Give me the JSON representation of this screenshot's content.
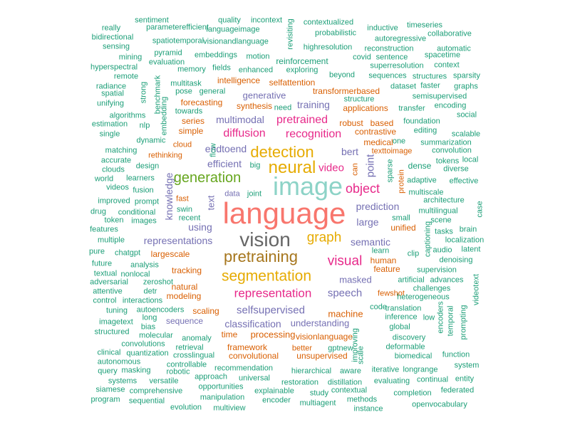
{
  "colors": {
    "salmon": "#f8766d",
    "orange": "#e68613",
    "olive": "#cd9600",
    "gold": "#c49a00",
    "yellowgreen": "#aba300",
    "darkgold": "#8e7b00",
    "green": "#7cae00",
    "leaf": "#0cb702",
    "teal": "#00a48f",
    "tealgreen": "#00a67e",
    "aqua": "#00bfc4",
    "lightcyan": "#8dd3c7",
    "blue": "#00b4f0",
    "sky": "#00a9ff",
    "slate": "#6573a8",
    "purple": "#7b6fb0",
    "violet": "#c77cff",
    "magenta": "#e7298a",
    "pink": "#ff61cc",
    "gray": "#666666",
    "green2": "#1b9e77",
    "orange2": "#d95f02",
    "purple2": "#7570b3",
    "lime2": "#66a61e",
    "yellow2": "#e6ab02",
    "brown2": "#a6761d"
  },
  "words": [
    {
      "t": "language",
      "c": "salmon"
    },
    {
      "t": "image",
      "c": "lightcyan"
    },
    {
      "t": "vision",
      "c": "gray"
    },
    {
      "t": "pretraining",
      "c": "brown2"
    },
    {
      "t": "segmentation",
      "c": "yellow2"
    },
    {
      "t": "neural",
      "c": "yellow2"
    },
    {
      "t": "detection",
      "c": "yellow2"
    },
    {
      "t": "generation",
      "c": "lime2"
    },
    {
      "t": "graph",
      "c": "yellow2"
    },
    {
      "t": "representation",
      "c": "magenta"
    },
    {
      "t": "visual",
      "c": "magenta"
    },
    {
      "t": "object",
      "c": "magenta"
    },
    {
      "t": "diffusion",
      "c": "magenta"
    },
    {
      "t": "recognition",
      "c": "magenta"
    },
    {
      "t": "pretrained",
      "c": "magenta"
    },
    {
      "t": "selfsupervised",
      "c": "purple2"
    },
    {
      "t": "speech",
      "c": "purple2"
    },
    {
      "t": "prediction",
      "c": "purple2"
    },
    {
      "t": "semantic",
      "c": "purple2"
    },
    {
      "t": "masked",
      "c": "purple2"
    },
    {
      "t": "representations",
      "c": "purple2"
    },
    {
      "t": "endtoend",
      "c": "purple2"
    },
    {
      "t": "efficient",
      "c": "purple2"
    },
    {
      "t": "video",
      "c": "magenta"
    },
    {
      "t": "bert",
      "c": "purple2"
    },
    {
      "t": "point",
      "c": "purple2"
    },
    {
      "t": "large",
      "c": "purple2"
    },
    {
      "t": "knowledge",
      "c": "purple2"
    },
    {
      "t": "text",
      "c": "purple2"
    },
    {
      "t": "using",
      "c": "purple2"
    },
    {
      "t": "training",
      "c": "purple2"
    },
    {
      "t": "multimodal",
      "c": "purple2"
    },
    {
      "t": "generative",
      "c": "purple2"
    },
    {
      "t": "classification",
      "c": "purple2"
    },
    {
      "t": "understanding",
      "c": "purple2"
    },
    {
      "t": "machine",
      "c": "orange2"
    },
    {
      "t": "processing",
      "c": "orange2"
    },
    {
      "t": "human",
      "c": "orange2"
    },
    {
      "t": "medical",
      "c": "orange2"
    },
    {
      "t": "contrastive",
      "c": "orange2"
    },
    {
      "t": "unified",
      "c": "orange2"
    },
    {
      "t": "tracking",
      "c": "orange2"
    },
    {
      "t": "largescale",
      "c": "orange2"
    },
    {
      "t": "natural",
      "c": "orange2"
    },
    {
      "t": "modeling",
      "c": "orange2"
    },
    {
      "t": "scaling",
      "c": "orange2"
    },
    {
      "t": "synthesis",
      "c": "orange2"
    },
    {
      "t": "transformerbased",
      "c": "orange2"
    },
    {
      "t": "applications",
      "c": "orange2"
    },
    {
      "t": "robust",
      "c": "orange2"
    },
    {
      "t": "based",
      "c": "orange2"
    },
    {
      "t": "feature",
      "c": "orange2"
    },
    {
      "t": "visionlanguage",
      "c": "orange2"
    },
    {
      "t": "framework",
      "c": "orange2"
    },
    {
      "t": "convolutional",
      "c": "orange2"
    },
    {
      "t": "unsupervised",
      "c": "orange2"
    },
    {
      "t": "better",
      "c": "orange2"
    },
    {
      "t": "time",
      "c": "orange2"
    },
    {
      "t": "forecasting",
      "c": "orange2"
    },
    {
      "t": "intelligence",
      "c": "orange2"
    },
    {
      "t": "selfattention",
      "c": "orange2"
    },
    {
      "t": "simple",
      "c": "orange2"
    },
    {
      "t": "series",
      "c": "orange2"
    },
    {
      "t": "cloud",
      "c": "orange2"
    },
    {
      "t": "rethinking",
      "c": "orange2"
    },
    {
      "t": "fast",
      "c": "orange2"
    },
    {
      "t": "texttoimage",
      "c": "orange2"
    },
    {
      "t": "fewshot",
      "c": "orange2"
    },
    {
      "t": "protein",
      "c": "orange2"
    },
    {
      "t": "can",
      "c": "orange2"
    },
    {
      "t": "sequence",
      "c": "purple2"
    },
    {
      "t": "code",
      "c": "green2"
    },
    {
      "t": "dense",
      "c": "green2"
    },
    {
      "t": "adaptive",
      "c": "green2"
    },
    {
      "t": "multiscale",
      "c": "green2"
    },
    {
      "t": "multilingual",
      "c": "green2"
    },
    {
      "t": "data",
      "c": "purple2"
    },
    {
      "t": "reinforcement",
      "c": "green2"
    },
    {
      "t": "enhanced",
      "c": "green2"
    },
    {
      "t": "exploring",
      "c": "green2"
    },
    {
      "t": "beyond",
      "c": "green2"
    },
    {
      "t": "general",
      "c": "green2"
    },
    {
      "t": "towards",
      "c": "green2"
    },
    {
      "t": "dynamic",
      "c": "green2"
    },
    {
      "t": "learners",
      "c": "green2"
    },
    {
      "t": "fusion",
      "c": "green2"
    },
    {
      "t": "conditional",
      "c": "green2"
    },
    {
      "t": "images",
      "c": "green2"
    },
    {
      "t": "analysis",
      "c": "green2"
    },
    {
      "t": "zeroshot",
      "c": "green2"
    },
    {
      "t": "autoencoders",
      "c": "green2"
    },
    {
      "t": "molecular",
      "c": "green2"
    },
    {
      "t": "crosslingual",
      "c": "green2"
    },
    {
      "t": "recommendation",
      "c": "green2"
    },
    {
      "t": "hierarchical",
      "c": "green2"
    },
    {
      "t": "aware",
      "c": "green2"
    },
    {
      "t": "restoration",
      "c": "green2"
    },
    {
      "t": "distillation",
      "c": "green2"
    },
    {
      "t": "contextual",
      "c": "green2"
    },
    {
      "t": "methods",
      "c": "green2"
    },
    {
      "t": "instance",
      "c": "green2"
    },
    {
      "t": "explainable",
      "c": "green2"
    },
    {
      "t": "encoder",
      "c": "green2"
    },
    {
      "t": "multiagent",
      "c": "green2"
    },
    {
      "t": "study",
      "c": "green2"
    },
    {
      "t": "universal",
      "c": "green2"
    },
    {
      "t": "manipulation",
      "c": "green2"
    },
    {
      "t": "multiview",
      "c": "green2"
    },
    {
      "t": "opportunities",
      "c": "green2"
    },
    {
      "t": "approach",
      "c": "green2"
    },
    {
      "t": "evolution",
      "c": "green2"
    },
    {
      "t": "sequential",
      "c": "green2"
    },
    {
      "t": "comprehensive",
      "c": "green2"
    },
    {
      "t": "program",
      "c": "green2"
    },
    {
      "t": "siamese",
      "c": "green2"
    },
    {
      "t": "systems",
      "c": "green2"
    },
    {
      "t": "versatile",
      "c": "green2"
    },
    {
      "t": "query",
      "c": "green2"
    },
    {
      "t": "masking",
      "c": "green2"
    },
    {
      "t": "robotic",
      "c": "green2"
    },
    {
      "t": "autonomous",
      "c": "green2"
    },
    {
      "t": "controllable",
      "c": "green2"
    },
    {
      "t": "clinical",
      "c": "green2"
    },
    {
      "t": "quantization",
      "c": "green2"
    },
    {
      "t": "convolutions",
      "c": "green2"
    },
    {
      "t": "retrieval",
      "c": "green2"
    },
    {
      "t": "structured",
      "c": "green2"
    },
    {
      "t": "anomaly",
      "c": "green2"
    },
    {
      "t": "imagetext",
      "c": "green2"
    },
    {
      "t": "bias",
      "c": "green2"
    },
    {
      "t": "long",
      "c": "green2"
    },
    {
      "t": "tuning",
      "c": "green2"
    },
    {
      "t": "interactions",
      "c": "green2"
    },
    {
      "t": "control",
      "c": "green2"
    },
    {
      "t": "attentive",
      "c": "green2"
    },
    {
      "t": "detr",
      "c": "green2"
    },
    {
      "t": "adversarial",
      "c": "green2"
    },
    {
      "t": "textual",
      "c": "green2"
    },
    {
      "t": "nonlocal",
      "c": "green2"
    },
    {
      "t": "future",
      "c": "green2"
    },
    {
      "t": "pure",
      "c": "green2"
    },
    {
      "t": "chatgpt",
      "c": "green2"
    },
    {
      "t": "multiple",
      "c": "green2"
    },
    {
      "t": "features",
      "c": "green2"
    },
    {
      "t": "token",
      "c": "green2"
    },
    {
      "t": "drug",
      "c": "green2"
    },
    {
      "t": "improved",
      "c": "green2"
    },
    {
      "t": "prompt",
      "c": "green2"
    },
    {
      "t": "swin",
      "c": "green2"
    },
    {
      "t": "recent",
      "c": "green2"
    },
    {
      "t": "videos",
      "c": "green2"
    },
    {
      "t": "world",
      "c": "green2"
    },
    {
      "t": "clouds",
      "c": "green2"
    },
    {
      "t": "design",
      "c": "green2"
    },
    {
      "t": "accurate",
      "c": "green2"
    },
    {
      "t": "matching",
      "c": "green2"
    },
    {
      "t": "single",
      "c": "green2"
    },
    {
      "t": "estimation",
      "c": "green2"
    },
    {
      "t": "nlp",
      "c": "green2"
    },
    {
      "t": "algorithms",
      "c": "green2"
    },
    {
      "t": "unifying",
      "c": "green2"
    },
    {
      "t": "spatial",
      "c": "green2"
    },
    {
      "t": "radiance",
      "c": "green2"
    },
    {
      "t": "remote",
      "c": "green2"
    },
    {
      "t": "hyperspectral",
      "c": "green2"
    },
    {
      "t": "mining",
      "c": "green2"
    },
    {
      "t": "sensing",
      "c": "green2"
    },
    {
      "t": "bidirectional",
      "c": "green2"
    },
    {
      "t": "really",
      "c": "green2"
    },
    {
      "t": "sentiment",
      "c": "green2"
    },
    {
      "t": "parameterefficient",
      "c": "green2"
    },
    {
      "t": "spatiotemporal",
      "c": "green2"
    },
    {
      "t": "pyramid",
      "c": "green2"
    },
    {
      "t": "evaluation",
      "c": "green2"
    },
    {
      "t": "memory",
      "c": "green2"
    },
    {
      "t": "embeddings",
      "c": "green2"
    },
    {
      "t": "motion",
      "c": "green2"
    },
    {
      "t": "fields",
      "c": "green2"
    },
    {
      "t": "quality",
      "c": "green2"
    },
    {
      "t": "languageimage",
      "c": "green2"
    },
    {
      "t": "visionandlanguage",
      "c": "green2"
    },
    {
      "t": "incontext",
      "c": "green2"
    },
    {
      "t": "revisiting",
      "c": "green2"
    },
    {
      "t": "contextualized",
      "c": "green2"
    },
    {
      "t": "probabilistic",
      "c": "green2"
    },
    {
      "t": "highresolution",
      "c": "green2"
    },
    {
      "t": "inductive",
      "c": "green2"
    },
    {
      "t": "autoregressive",
      "c": "green2"
    },
    {
      "t": "reconstruction",
      "c": "green2"
    },
    {
      "t": "covid",
      "c": "green2"
    },
    {
      "t": "sentence",
      "c": "green2"
    },
    {
      "t": "timeseries",
      "c": "green2"
    },
    {
      "t": "collaborative",
      "c": "green2"
    },
    {
      "t": "automatic",
      "c": "green2"
    },
    {
      "t": "spacetime",
      "c": "green2"
    },
    {
      "t": "superresolution",
      "c": "green2"
    },
    {
      "t": "context",
      "c": "green2"
    },
    {
      "t": "sequences",
      "c": "green2"
    },
    {
      "t": "structures",
      "c": "green2"
    },
    {
      "t": "sparsity",
      "c": "green2"
    },
    {
      "t": "dataset",
      "c": "green2"
    },
    {
      "t": "faster",
      "c": "green2"
    },
    {
      "t": "graphs",
      "c": "green2"
    },
    {
      "t": "semisupervised",
      "c": "green2"
    },
    {
      "t": "structure",
      "c": "green2"
    },
    {
      "t": "transfer",
      "c": "green2"
    },
    {
      "t": "encoding",
      "c": "green2"
    },
    {
      "t": "social",
      "c": "green2"
    },
    {
      "t": "foundation",
      "c": "green2"
    },
    {
      "t": "editing",
      "c": "green2"
    },
    {
      "t": "scalable",
      "c": "green2"
    },
    {
      "t": "summarization",
      "c": "green2"
    },
    {
      "t": "one",
      "c": "green2"
    },
    {
      "t": "convolution",
      "c": "green2"
    },
    {
      "t": "tokens",
      "c": "green2"
    },
    {
      "t": "local",
      "c": "green2"
    },
    {
      "t": "diverse",
      "c": "green2"
    },
    {
      "t": "effective",
      "c": "green2"
    },
    {
      "t": "architecture",
      "c": "green2"
    },
    {
      "t": "scene",
      "c": "green2"
    },
    {
      "t": "tasks",
      "c": "green2"
    },
    {
      "t": "brain",
      "c": "green2"
    },
    {
      "t": "localization",
      "c": "green2"
    },
    {
      "t": "latent",
      "c": "green2"
    },
    {
      "t": "audio",
      "c": "green2"
    },
    {
      "t": "denoising",
      "c": "green2"
    },
    {
      "t": "supervision",
      "c": "green2"
    },
    {
      "t": "advances",
      "c": "green2"
    },
    {
      "t": "challenges",
      "c": "green2"
    },
    {
      "t": "heterogeneous",
      "c": "green2"
    },
    {
      "t": "artificial",
      "c": "green2"
    },
    {
      "t": "learn",
      "c": "green2"
    },
    {
      "t": "clip",
      "c": "green2"
    },
    {
      "t": "small",
      "c": "green2"
    },
    {
      "t": "captioning",
      "c": "green2"
    },
    {
      "t": "case",
      "c": "green2"
    },
    {
      "t": "videotext",
      "c": "green2"
    },
    {
      "t": "prompting",
      "c": "green2"
    },
    {
      "t": "temporal",
      "c": "green2"
    },
    {
      "t": "encoders",
      "c": "green2"
    },
    {
      "t": "translation",
      "c": "green2"
    },
    {
      "t": "inference",
      "c": "green2"
    },
    {
      "t": "low",
      "c": "green2"
    },
    {
      "t": "global",
      "c": "green2"
    },
    {
      "t": "discovery",
      "c": "green2"
    },
    {
      "t": "deformable",
      "c": "green2"
    },
    {
      "t": "biomedical",
      "c": "green2"
    },
    {
      "t": "function",
      "c": "green2"
    },
    {
      "t": "system",
      "c": "green2"
    },
    {
      "t": "entity",
      "c": "green2"
    },
    {
      "t": "federated",
      "c": "green2"
    },
    {
      "t": "continual",
      "c": "green2"
    },
    {
      "t": "longrange",
      "c": "green2"
    },
    {
      "t": "iterative",
      "c": "green2"
    },
    {
      "t": "evaluating",
      "c": "green2"
    },
    {
      "t": "completion",
      "c": "green2"
    },
    {
      "t": "openvocabulary",
      "c": "green2"
    },
    {
      "t": "improving",
      "c": "green2"
    },
    {
      "t": "scale",
      "c": "green2"
    },
    {
      "t": "gptnew",
      "c": "green2"
    },
    {
      "t": "need",
      "c": "green2"
    },
    {
      "t": "joint",
      "c": "green2"
    },
    {
      "t": "big",
      "c": "green2"
    },
    {
      "t": "flow",
      "c": "green2"
    },
    {
      "t": "multitask",
      "c": "green2"
    },
    {
      "t": "pose",
      "c": "green2"
    },
    {
      "t": "embedding",
      "c": "green2"
    },
    {
      "t": "benchmark",
      "c": "green2"
    },
    {
      "t": "strong",
      "c": "green2"
    },
    {
      "t": "sparse",
      "c": "green2"
    }
  ]
}
